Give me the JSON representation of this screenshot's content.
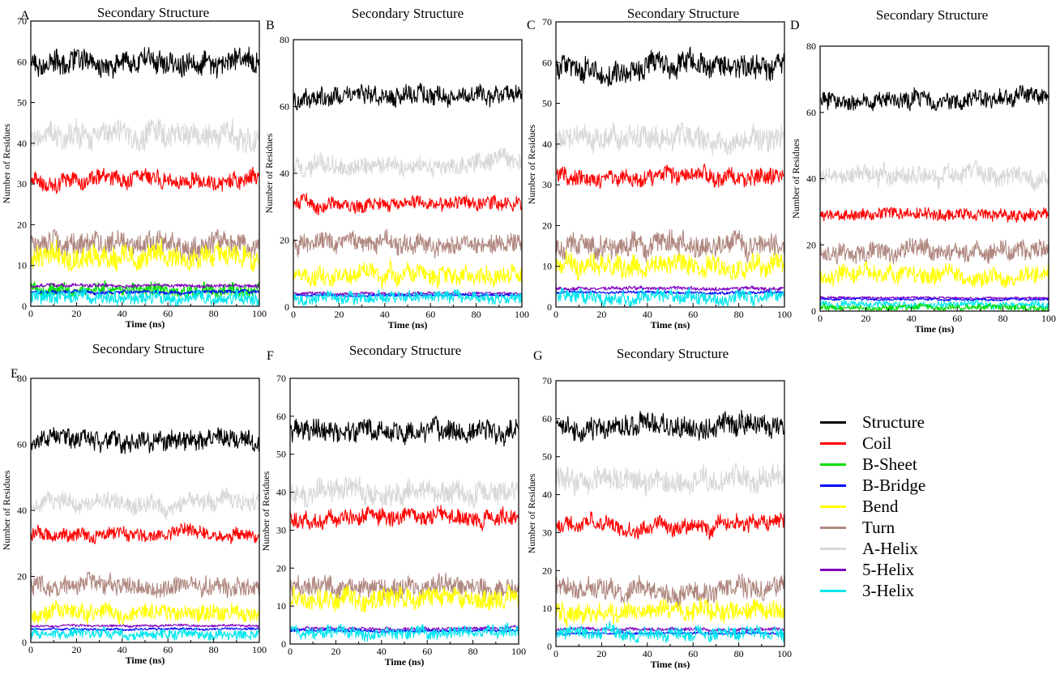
{
  "figure": {
    "legend": [
      {
        "name": "Structure",
        "color": "#000000"
      },
      {
        "name": "Coil",
        "color": "#ff0000"
      },
      {
        "name": "B-Sheet",
        "color": "#00dd00"
      },
      {
        "name": "B-Bridge",
        "color": "#0000ff"
      },
      {
        "name": "Bend",
        "color": "#ffff00"
      },
      {
        "name": "Turn",
        "color": "#b08880"
      },
      {
        "name": "A-Helix",
        "color": "#d8d8d8"
      },
      {
        "name": "5-Helix",
        "color": "#8000c0"
      },
      {
        "name": "3-Helix",
        "color": "#00e5ee"
      }
    ]
  },
  "chart_data": [
    {
      "panel": "A",
      "type": "line",
      "title": "Secondary Structure",
      "xlabel": "Time (ns)",
      "ylabel": "Number of Residues",
      "xlim": [
        0,
        100
      ],
      "ylim": [
        0,
        70
      ],
      "xticks": [
        0,
        20,
        40,
        60,
        80,
        100
      ],
      "yticks": [
        0,
        10,
        20,
        30,
        40,
        50,
        60,
        70
      ],
      "series": [
        {
          "name": "A-Helix",
          "color": "#d8d8d8",
          "mean": 42,
          "noise": 2.8
        },
        {
          "name": "Structure",
          "color": "#000000",
          "mean": 60,
          "noise": 2.5
        },
        {
          "name": "Turn",
          "color": "#b08880",
          "mean": 15,
          "noise": 2.5
        },
        {
          "name": "Bend",
          "color": "#ffff00",
          "mean": 12,
          "noise": 2.5
        },
        {
          "name": "Coil",
          "color": "#ff0000",
          "mean": 31,
          "noise": 1.8
        },
        {
          "name": "B-Sheet",
          "color": "#00dd00",
          "mean": 4,
          "noise": 1.5
        },
        {
          "name": "5-Helix",
          "color": "#8000c0",
          "mean": 5,
          "noise": 0.4
        },
        {
          "name": "B-Bridge",
          "color": "#0000ff",
          "mean": 3.5,
          "noise": 0.4
        },
        {
          "name": "3-Helix",
          "color": "#00e5ee",
          "mean": 2,
          "noise": 1.5
        }
      ]
    },
    {
      "panel": "B",
      "type": "line",
      "title": "Secondary Structure",
      "xlabel": "Time (ns)",
      "ylabel": "Number of Residues",
      "xlim": [
        0,
        100
      ],
      "ylim": [
        0,
        80
      ],
      "xticks": [
        0,
        20,
        40,
        60,
        80,
        100
      ],
      "yticks": [
        0,
        20,
        40,
        60,
        80
      ],
      "series": [
        {
          "name": "A-Helix",
          "color": "#d8d8d8",
          "mean": 43,
          "noise": 2.5
        },
        {
          "name": "Structure",
          "color": "#000000",
          "mean": 63,
          "noise": 2.5
        },
        {
          "name": "Turn",
          "color": "#b08880",
          "mean": 19,
          "noise": 2.5
        },
        {
          "name": "Bend",
          "color": "#ffff00",
          "mean": 10,
          "noise": 2.5
        },
        {
          "name": "Coil",
          "color": "#ff0000",
          "mean": 31,
          "noise": 1.8
        },
        {
          "name": "5-Helix",
          "color": "#8000c0",
          "mean": 4,
          "noise": 0.4
        },
        {
          "name": "B-Bridge",
          "color": "#0000ff",
          "mean": 3.5,
          "noise": 0.3
        },
        {
          "name": "3-Helix",
          "color": "#00e5ee",
          "mean": 3,
          "noise": 1.5
        }
      ]
    },
    {
      "panel": "C",
      "type": "line",
      "title": "Secondary Structure",
      "xlabel": "Time (ns)",
      "ylabel": "Number of Residues",
      "xlim": [
        0,
        100
      ],
      "ylim": [
        0,
        70
      ],
      "xticks": [
        0,
        20,
        40,
        60,
        80,
        100
      ],
      "yticks": [
        0,
        10,
        20,
        30,
        40,
        50,
        60,
        70
      ],
      "series": [
        {
          "name": "A-Helix",
          "color": "#d8d8d8",
          "mean": 41,
          "noise": 2.6
        },
        {
          "name": "Structure",
          "color": "#000000",
          "mean": 59,
          "noise": 2.6
        },
        {
          "name": "Turn",
          "color": "#b08880",
          "mean": 15,
          "noise": 2.5
        },
        {
          "name": "Bend",
          "color": "#ffff00",
          "mean": 10,
          "noise": 2.4
        },
        {
          "name": "Coil",
          "color": "#ff0000",
          "mean": 32,
          "noise": 1.8
        },
        {
          "name": "5-Helix",
          "color": "#8000c0",
          "mean": 4.5,
          "noise": 0.4
        },
        {
          "name": "B-Bridge",
          "color": "#0000ff",
          "mean": 3.5,
          "noise": 0.3
        },
        {
          "name": "3-Helix",
          "color": "#00e5ee",
          "mean": 2.5,
          "noise": 1.5
        }
      ]
    },
    {
      "panel": "D",
      "type": "line",
      "title": "Secondary Structure",
      "xlabel": "Time (ns)",
      "ylabel": "Number of Residues",
      "xlim": [
        0,
        100
      ],
      "ylim": [
        0,
        80
      ],
      "xticks": [
        0,
        20,
        40,
        60,
        80,
        100
      ],
      "yticks": [
        0,
        20,
        40,
        60,
        80
      ],
      "series": [
        {
          "name": "A-Helix",
          "color": "#d8d8d8",
          "mean": 41,
          "noise": 2.5
        },
        {
          "name": "Structure",
          "color": "#000000",
          "mean": 64,
          "noise": 2.3
        },
        {
          "name": "Turn",
          "color": "#b08880",
          "mean": 18,
          "noise": 2.5
        },
        {
          "name": "Bend",
          "color": "#ffff00",
          "mean": 11,
          "noise": 2.4
        },
        {
          "name": "Coil",
          "color": "#ff0000",
          "mean": 29,
          "noise": 1.6
        },
        {
          "name": "5-Helix",
          "color": "#8000c0",
          "mean": 4,
          "noise": 0.3
        },
        {
          "name": "B-Bridge",
          "color": "#0000ff",
          "mean": 3.5,
          "noise": 0.3
        },
        {
          "name": "3-Helix",
          "color": "#00e5ee",
          "mean": 2,
          "noise": 1.0
        },
        {
          "name": "B-Sheet",
          "color": "#00dd00",
          "mean": 1,
          "noise": 0.8
        }
      ]
    },
    {
      "panel": "E",
      "type": "line",
      "title": "Secondary Structure",
      "xlabel": "Time (ns)",
      "ylabel": "Number of Residues",
      "xlim": [
        0,
        100
      ],
      "ylim": [
        0,
        80
      ],
      "xticks": [
        0,
        20,
        40,
        60,
        80,
        100
      ],
      "yticks": [
        0,
        20,
        40,
        60,
        80
      ],
      "series": [
        {
          "name": "A-Helix",
          "color": "#d8d8d8",
          "mean": 42,
          "noise": 2.5
        },
        {
          "name": "Structure",
          "color": "#000000",
          "mean": 61,
          "noise": 2.6
        },
        {
          "name": "Turn",
          "color": "#b08880",
          "mean": 17,
          "noise": 2.6
        },
        {
          "name": "Bend",
          "color": "#ffff00",
          "mean": 9,
          "noise": 2.3
        },
        {
          "name": "Coil",
          "color": "#ff0000",
          "mean": 33,
          "noise": 1.8
        },
        {
          "name": "5-Helix",
          "color": "#8000c0",
          "mean": 5,
          "noise": 0.3
        },
        {
          "name": "B-Bridge",
          "color": "#0000ff",
          "mean": 4,
          "noise": 0.3
        },
        {
          "name": "3-Helix",
          "color": "#00e5ee",
          "mean": 2.5,
          "noise": 1.3
        }
      ]
    },
    {
      "panel": "F",
      "type": "line",
      "title": "Secondary Structure",
      "xlabel": "Time (ns)",
      "ylabel": "Number of Residues",
      "xlim": [
        0,
        100
      ],
      "ylim": [
        0,
        70
      ],
      "xticks": [
        0,
        20,
        40,
        60,
        80,
        100
      ],
      "yticks": [
        0,
        10,
        20,
        30,
        40,
        50,
        60,
        70
      ],
      "series": [
        {
          "name": "A-Helix",
          "color": "#d8d8d8",
          "mean": 40,
          "noise": 2.6
        },
        {
          "name": "Structure",
          "color": "#000000",
          "mean": 56,
          "noise": 2.5
        },
        {
          "name": "Turn",
          "color": "#b08880",
          "mean": 15,
          "noise": 2.4
        },
        {
          "name": "Bend",
          "color": "#ffff00",
          "mean": 12,
          "noise": 2.4
        },
        {
          "name": "Coil",
          "color": "#ff0000",
          "mean": 33,
          "noise": 1.9
        },
        {
          "name": "5-Helix",
          "color": "#8000c0",
          "mean": 4,
          "noise": 0.4
        },
        {
          "name": "B-Bridge",
          "color": "#0000ff",
          "mean": 3.5,
          "noise": 0.3
        },
        {
          "name": "3-Helix",
          "color": "#00e5ee",
          "mean": 3,
          "noise": 1.5
        }
      ]
    },
    {
      "panel": "G",
      "type": "line",
      "title": "Secondary Structure",
      "xlabel": "Time (ns)",
      "ylabel": "Number of Residues",
      "xlim": [
        0,
        100
      ],
      "ylim": [
        0,
        70
      ],
      "xticks": [
        0,
        20,
        40,
        60,
        80,
        100
      ],
      "yticks": [
        0,
        10,
        20,
        30,
        40,
        50,
        60,
        70
      ],
      "series": [
        {
          "name": "A-Helix",
          "color": "#d8d8d8",
          "mean": 44,
          "noise": 2.8
        },
        {
          "name": "Structure",
          "color": "#000000",
          "mean": 58,
          "noise": 2.6
        },
        {
          "name": "Turn",
          "color": "#b08880",
          "mean": 15,
          "noise": 2.5
        },
        {
          "name": "Bend",
          "color": "#ffff00",
          "mean": 9,
          "noise": 2.3
        },
        {
          "name": "Coil",
          "color": "#ff0000",
          "mean": 32,
          "noise": 1.8
        },
        {
          "name": "5-Helix",
          "color": "#8000c0",
          "mean": 4.5,
          "noise": 0.4
        },
        {
          "name": "B-Bridge",
          "color": "#0000ff",
          "mean": 3.5,
          "noise": 0.3
        },
        {
          "name": "3-Helix",
          "color": "#00e5ee",
          "mean": 3.5,
          "noise": 1.6
        }
      ]
    }
  ]
}
